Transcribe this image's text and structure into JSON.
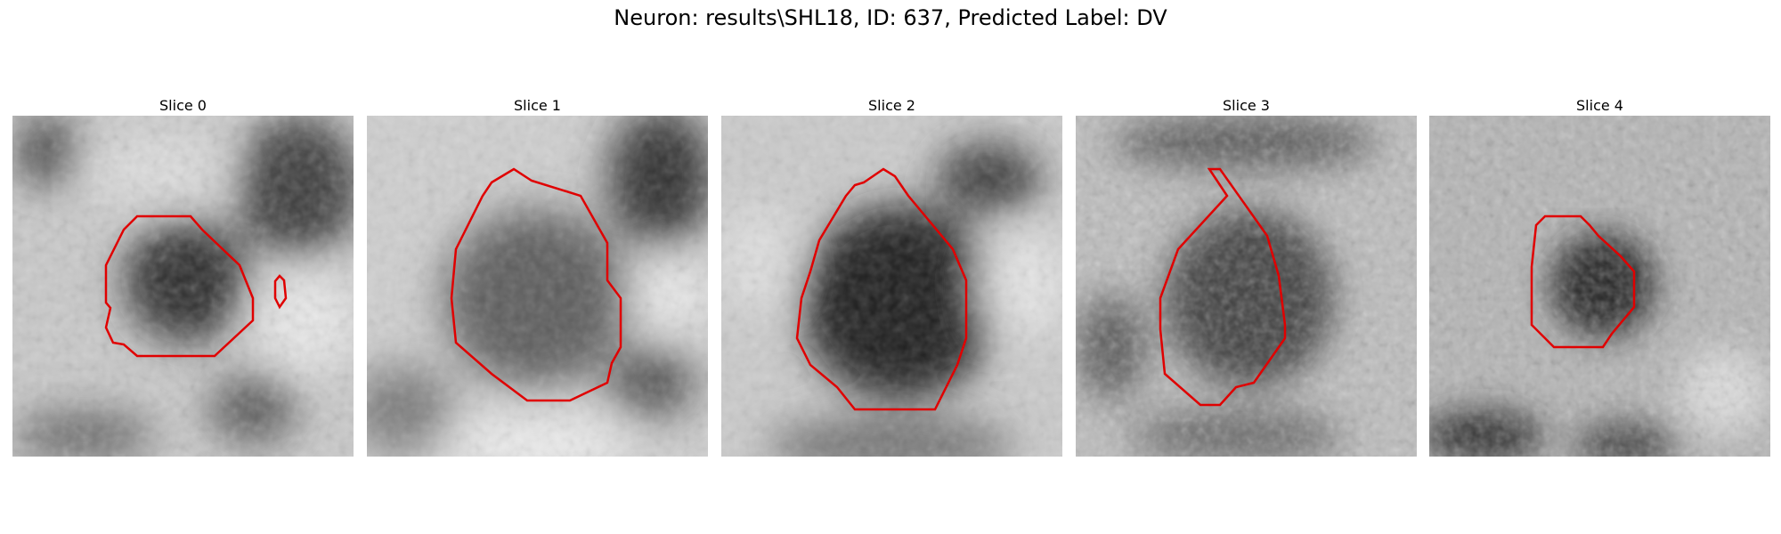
{
  "figure": {
    "suptitle": "Neuron: results\\SHL18, ID: 637, Predicted Label: DV",
    "contour_color": "#e00000"
  },
  "panels": [
    {
      "title": "Slice 0"
    },
    {
      "title": "Slice 1"
    },
    {
      "title": "Slice 2"
    },
    {
      "title": "Slice 3"
    },
    {
      "title": "Slice 4"
    }
  ]
}
